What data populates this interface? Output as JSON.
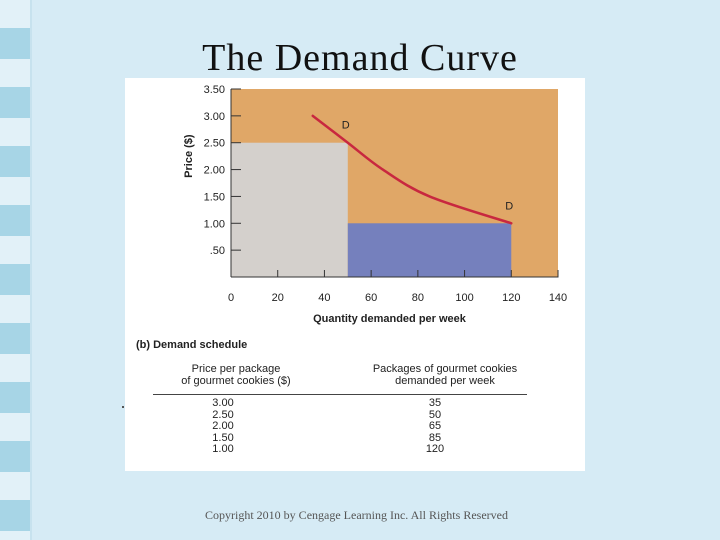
{
  "slide": {
    "title": "The Demand Curve",
    "copyright": "Copyright 2010 by Cengage Learning Inc. All Rights Reserved"
  },
  "colors": {
    "background_area": "#e0a767",
    "gray_rect": "#d4d0cc",
    "blue_rect": "#7580bd",
    "curve": "#c8283f"
  },
  "chart_data": {
    "type": "line",
    "xlabel": "Quantity demanded per week",
    "ylabel": "Price ($)",
    "xlim": [
      0,
      140
    ],
    "ylim": [
      0,
      3.5
    ],
    "x_ticks": [
      0,
      20,
      40,
      60,
      80,
      100,
      120,
      140
    ],
    "x_tick_labels": [
      "0",
      "20",
      "40",
      "60",
      "80",
      "100",
      "120",
      "140"
    ],
    "y_ticks": [
      0.5,
      1.0,
      1.5,
      2.0,
      2.5,
      3.0,
      3.5
    ],
    "y_tick_labels": [
      ".50",
      "1.00",
      "1.50",
      "2.00",
      "2.50",
      "3.00",
      "3.50"
    ],
    "series": [
      {
        "name": "",
        "x": [
          35,
          50,
          65,
          85,
          120
        ],
        "y": [
          3.0,
          2.5,
          2.0,
          1.5,
          1.0
        ]
      }
    ],
    "curve_labels": [
      {
        "text": "D",
        "x": 50,
        "y": 2.5
      },
      {
        "text": "D",
        "x": 120,
        "y": 1.0
      }
    ],
    "shaded_regions": [
      {
        "x0": 0,
        "x1": 50,
        "y0": 0,
        "y1": 2.5
      },
      {
        "x0": 50,
        "x1": 120,
        "y0": 0,
        "y1": 1.0
      }
    ],
    "grid": false
  },
  "schedule": {
    "heading": "(b) Demand schedule",
    "price_header": "Price per package\nof gourmet cookies ($)",
    "quantity_header": "Packages of gourmet cookies\ndemanded per week",
    "prices": [
      "3.00",
      "2.50",
      "2.00",
      "1.50",
      "1.00"
    ],
    "quantities": [
      "35",
      "50",
      "65",
      "85",
      "120"
    ]
  }
}
